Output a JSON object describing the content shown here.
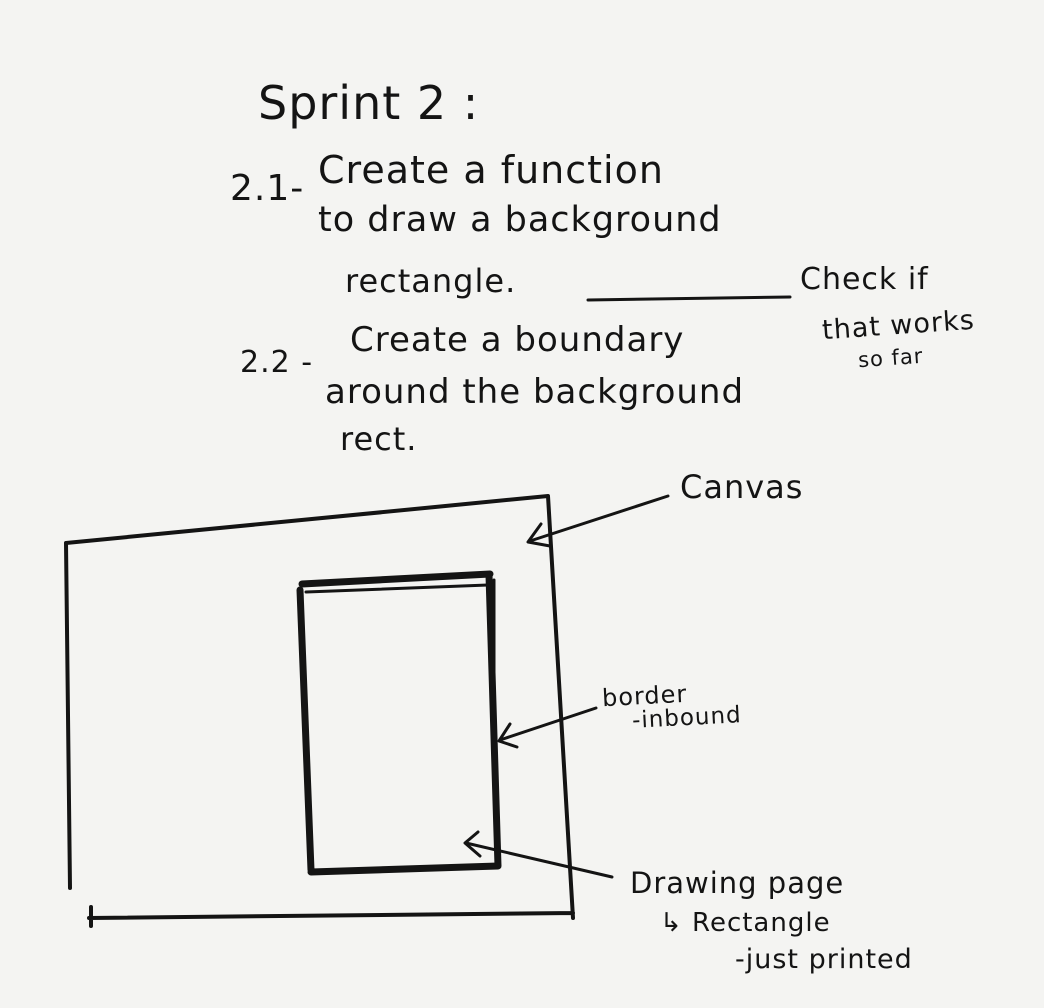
{
  "heading": "Sprint 2 :",
  "tasks": [
    {
      "number": "2.1-",
      "lines": [
        "Create a function",
        "to draw a background",
        "rectangle."
      ]
    },
    {
      "number": "2.2 -",
      "lines": [
        "Create a boundary",
        "around the background",
        "rect."
      ]
    }
  ],
  "side_note": [
    "Check if",
    "that works",
    "so far"
  ],
  "labels": {
    "canvas": "Canvas",
    "border": [
      "border",
      "-inbound"
    ],
    "drawing_page": [
      "Drawing page",
      "↳ Rectangle",
      "-just printed"
    ]
  },
  "colors": {
    "paper": "#f4f4f2",
    "ink": "#141414"
  }
}
